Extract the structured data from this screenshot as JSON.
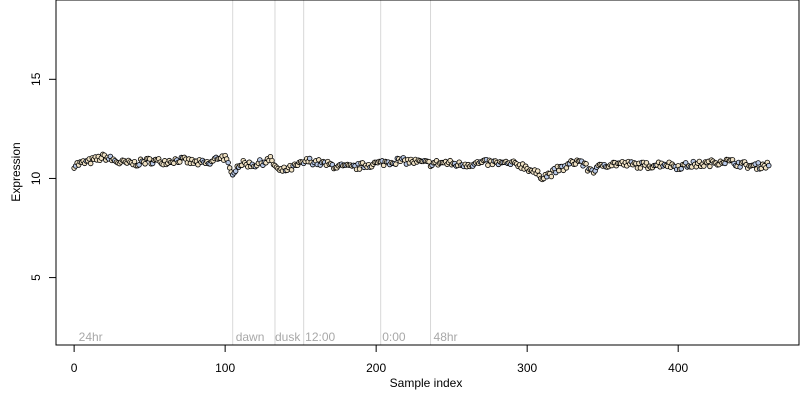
{
  "chart_data": {
    "type": "scatter",
    "xlabel": "Sample index",
    "ylabel": "Expression",
    "xlim": [
      -12,
      480
    ],
    "ylim": [
      1.6,
      19
    ],
    "xticks": [
      0,
      100,
      200,
      300,
      400
    ],
    "yticks": [
      5,
      10,
      15
    ],
    "grid": false,
    "point_count": 461,
    "boundaries": [
      105,
      133,
      152,
      203,
      236
    ],
    "period_labels": [
      {
        "text": "24hr",
        "x": 3
      },
      {
        "text": "dawn",
        "x": 107
      },
      {
        "text": "dusk",
        "x": 133
      },
      {
        "text": "12:00",
        "x": 153
      },
      {
        "text": "0:00",
        "x": 204
      },
      {
        "text": "48hr",
        "x": 238
      }
    ],
    "label_y": 2.0,
    "colors": {
      "point_fill": "#f0e2c4",
      "point_fill_alt": "#b9c9e6",
      "point_stroke": "#000000",
      "boundary": "#d8d8d8",
      "period_text": "#a8a8a8"
    },
    "series": [
      {
        "points": [
          [
            0,
            10.68
          ],
          [
            10,
            10.85
          ],
          [
            20,
            11.1
          ],
          [
            30,
            10.8
          ],
          [
            40,
            10.75
          ],
          [
            50,
            10.9
          ],
          [
            60,
            10.85
          ],
          [
            70,
            10.95
          ],
          [
            80,
            10.8
          ],
          [
            90,
            10.75
          ],
          [
            96,
            11.1
          ],
          [
            100,
            11.05
          ],
          [
            104,
            10.25
          ],
          [
            110,
            10.75
          ],
          [
            120,
            10.7
          ],
          [
            130,
            10.95
          ],
          [
            136,
            10.35
          ],
          [
            145,
            10.55
          ],
          [
            155,
            10.9
          ],
          [
            165,
            10.75
          ],
          [
            175,
            10.6
          ],
          [
            185,
            10.55
          ],
          [
            195,
            10.7
          ],
          [
            205,
            10.8
          ],
          [
            215,
            10.9
          ],
          [
            225,
            10.85
          ],
          [
            235,
            10.75
          ],
          [
            245,
            10.8
          ],
          [
            255,
            10.7
          ],
          [
            265,
            10.75
          ],
          [
            275,
            10.8
          ],
          [
            285,
            10.75
          ],
          [
            295,
            10.7
          ],
          [
            300,
            10.55
          ],
          [
            305,
            10.3
          ],
          [
            310,
            10.1
          ],
          [
            315,
            10.2
          ],
          [
            320,
            10.45
          ],
          [
            325,
            10.55
          ],
          [
            330,
            10.8
          ],
          [
            335,
            10.9
          ],
          [
            340,
            10.5
          ],
          [
            345,
            10.4
          ],
          [
            350,
            10.7
          ],
          [
            360,
            10.75
          ],
          [
            370,
            10.7
          ],
          [
            380,
            10.65
          ],
          [
            390,
            10.75
          ],
          [
            400,
            10.6
          ],
          [
            410,
            10.7
          ],
          [
            420,
            10.75
          ],
          [
            430,
            10.9
          ],
          [
            440,
            10.75
          ],
          [
            450,
            10.6
          ],
          [
            460,
            10.7
          ]
        ]
      }
    ]
  }
}
